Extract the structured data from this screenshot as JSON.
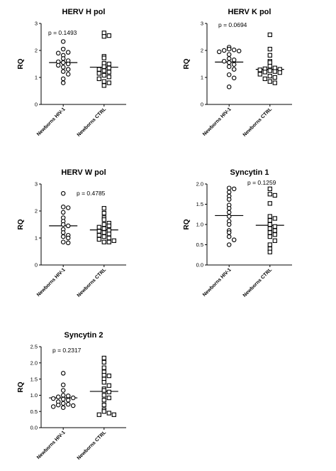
{
  "chart_data": [
    {
      "type": "scatter",
      "title": "HERV H pol",
      "ylabel": "RQ",
      "ylim": [
        0,
        3
      ],
      "yticks": [
        "0",
        "1",
        "2",
        "3"
      ],
      "categories": [
        "Newborns HIV-1",
        "Newborns CTRL"
      ],
      "annotation": "p = 0.1493",
      "series": [
        {
          "name": "Newborns HIV-1",
          "marker": "circle",
          "median": 1.55,
          "values": [
            2.33,
            2.05,
            1.93,
            1.9,
            1.82,
            1.7,
            1.62,
            1.58,
            1.55,
            1.5,
            1.45,
            1.38,
            1.3,
            1.22,
            1.12,
            0.95,
            0.8
          ]
        },
        {
          "name": "Newborns CTRL",
          "marker": "square",
          "median": 1.38,
          "values": [
            2.65,
            2.55,
            2.52,
            1.78,
            1.72,
            1.52,
            1.5,
            1.4,
            1.35,
            1.3,
            1.25,
            1.2,
            1.15,
            1.08,
            1.02,
            0.95,
            0.85,
            0.8,
            0.7
          ]
        }
      ]
    },
    {
      "type": "scatter",
      "title": "HERV K pol",
      "ylabel": "RQ",
      "ylim": [
        0,
        3
      ],
      "yticks": [
        "0",
        "1",
        "2",
        "3"
      ],
      "categories": [
        "Newborns HIV-1",
        "Newborns CTRL"
      ],
      "annotation": "p = 0.0694",
      "series": [
        {
          "name": "Newborns HIV-1",
          "marker": "circle",
          "median": 1.57,
          "values": [
            2.12,
            2.05,
            2.02,
            2.0,
            1.98,
            1.95,
            1.85,
            1.7,
            1.65,
            1.6,
            1.55,
            1.48,
            1.4,
            1.3,
            1.1,
            0.98,
            0.65
          ]
        },
        {
          "name": "Newborns CTRL",
          "marker": "square",
          "median": 1.3,
          "values": [
            2.58,
            2.05,
            1.82,
            1.6,
            1.55,
            1.42,
            1.35,
            1.32,
            1.3,
            1.28,
            1.25,
            1.22,
            1.2,
            1.18,
            1.12,
            1.05,
            1.0,
            0.95,
            0.85,
            0.8
          ]
        }
      ]
    },
    {
      "type": "scatter",
      "title": "HERV W pol",
      "ylabel": "RQ",
      "ylim": [
        0,
        3
      ],
      "yticks": [
        "0",
        "1",
        "2",
        "3"
      ],
      "categories": [
        "Newborns HIV-1",
        "Newborns CTRL"
      ],
      "annotation": "p = 0.4785",
      "series": [
        {
          "name": "Newborns HIV-1",
          "marker": "circle",
          "median": 1.45,
          "values": [
            2.65,
            2.15,
            2.12,
            1.95,
            1.75,
            1.62,
            1.5,
            1.45,
            1.32,
            1.2,
            1.1,
            1.05,
            1.0,
            0.85,
            0.82
          ]
        },
        {
          "name": "Newborns CTRL",
          "marker": "square",
          "median": 1.3,
          "values": [
            2.1,
            1.92,
            1.75,
            1.68,
            1.55,
            1.5,
            1.45,
            1.4,
            1.35,
            1.28,
            1.25,
            1.2,
            1.15,
            1.1,
            1.05,
            1.0,
            0.95,
            0.9,
            0.85,
            0.85
          ]
        }
      ]
    },
    {
      "type": "scatter",
      "title": "Syncytin 1",
      "ylabel": "RQ",
      "ylim": [
        0,
        2
      ],
      "yticks": [
        "0.0",
        "0.5",
        "1.0",
        "1.5",
        "2.0"
      ],
      "categories": [
        "Newborns HIV-1",
        "Newborns CTRL"
      ],
      "annotation": "p = 0.1259",
      "series": [
        {
          "name": "Newborns HIV-1",
          "marker": "circle",
          "median": 1.22,
          "values": [
            1.9,
            1.88,
            1.8,
            1.7,
            1.62,
            1.48,
            1.4,
            1.3,
            1.2,
            1.08,
            1.0,
            0.85,
            0.8,
            0.7,
            0.62,
            0.5
          ]
        },
        {
          "name": "Newborns CTRL",
          "marker": "square",
          "median": 0.98,
          "values": [
            1.88,
            1.75,
            1.72,
            1.52,
            1.2,
            1.15,
            1.1,
            1.0,
            0.95,
            0.9,
            0.85,
            0.8,
            0.75,
            0.7,
            0.6,
            0.5,
            0.4,
            0.32
          ]
        }
      ]
    },
    {
      "type": "scatter",
      "title": "Syncytin 2",
      "ylabel": "RQ",
      "ylim": [
        0,
        2.5
      ],
      "yticks": [
        "0.0",
        "0.5",
        "1.0",
        "1.5",
        "2.0",
        "2.5"
      ],
      "categories": [
        "Newborns HIV-1",
        "Newborns CTRL"
      ],
      "annotation": "p = 0.2317",
      "series": [
        {
          "name": "Newborns HIV-1",
          "marker": "circle",
          "median": 0.92,
          "values": [
            1.68,
            1.32,
            1.15,
            1.0,
            0.98,
            0.95,
            0.92,
            0.9,
            0.88,
            0.85,
            0.8,
            0.75,
            0.72,
            0.7,
            0.68,
            0.65,
            0.62
          ]
        },
        {
          "name": "Newborns CTRL",
          "marker": "square",
          "median": 1.12,
          "values": [
            2.15,
            2.02,
            1.85,
            1.72,
            1.62,
            1.6,
            1.5,
            1.4,
            1.3,
            1.2,
            1.15,
            1.1,
            1.0,
            0.92,
            0.85,
            0.7,
            0.55,
            0.5,
            0.45,
            0.4,
            0.4
          ]
        }
      ]
    }
  ]
}
